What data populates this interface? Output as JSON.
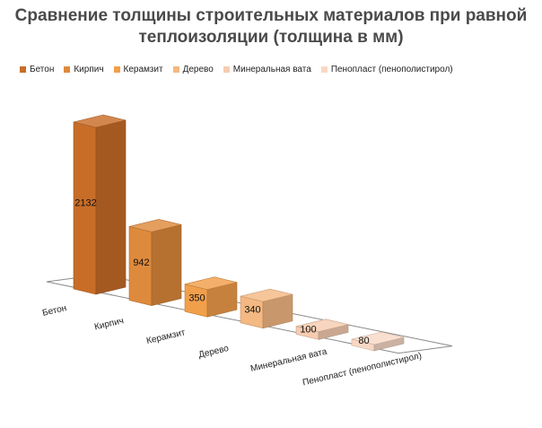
{
  "chart_data": {
    "type": "bar",
    "title": "Сравнение толщины строительных материалов при равной теплоизоляции (толщина в мм)",
    "title_lines": [
      "Сравнение толщины строительных материалов при равной",
      "теплоизоляции (толщина в мм)"
    ],
    "categories": [
      "Бетон",
      "Кирпич",
      "Керамзит",
      "Дерево",
      "Минеральная вата",
      "Пенопласт (пенополистирол)"
    ],
    "series": [
      {
        "name": "Бетон",
        "values": [
          2132,
          null,
          null,
          null,
          null,
          null
        ],
        "color": "#c86d28"
      },
      {
        "name": "Кирпич",
        "values": [
          null,
          942,
          null,
          null,
          null,
          null
        ],
        "color": "#de8a3c"
      },
      {
        "name": "Керамзит",
        "values": [
          null,
          null,
          350,
          null,
          null,
          null
        ],
        "color": "#f19f4b"
      },
      {
        "name": "Дерево",
        "values": [
          null,
          null,
          null,
          340,
          null,
          null
        ],
        "color": "#f4b882"
      },
      {
        "name": "Минеральная вата",
        "values": [
          null,
          null,
          null,
          null,
          100,
          null
        ],
        "color": "#f6ccb0"
      },
      {
        "name": "Пенопласт (пенополистирол)",
        "values": [
          null,
          null,
          null,
          null,
          null,
          80
        ],
        "color": "#f8d8c4"
      }
    ],
    "data_labels": [
      "2132",
      "942",
      "350",
      "340",
      "100",
      "80"
    ],
    "legend_position": "top",
    "grid": false,
    "projection": "3d-column"
  }
}
